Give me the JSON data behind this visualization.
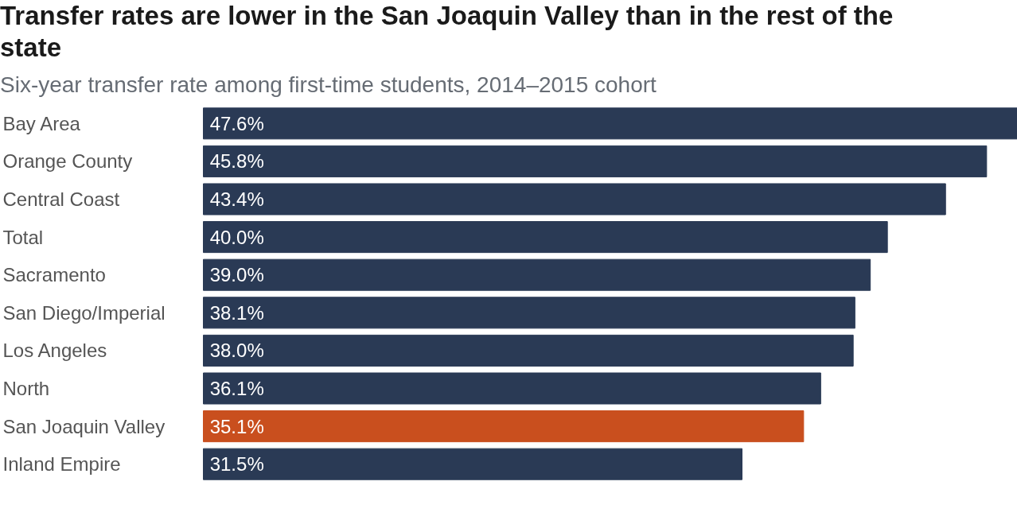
{
  "chart_data": {
    "type": "bar",
    "orientation": "horizontal",
    "title": "Transfer rates are lower in the San Joaquin Valley than in the rest of the state",
    "subtitle": "Six-year transfer rate among first-time students, 2014–2015 cohort",
    "categories": [
      "Bay Area",
      "Orange County",
      "Central Coast",
      "Total",
      "Sacramento",
      "San Diego/Imperial",
      "Los Angeles",
      "North",
      "San Joaquin Valley",
      "Inland Empire"
    ],
    "values": [
      47.6,
      45.8,
      43.4,
      40.0,
      39.0,
      38.1,
      38.0,
      36.1,
      35.1,
      31.5
    ],
    "value_labels": [
      "47.6%",
      "45.8%",
      "43.4%",
      "40.0%",
      "39.0%",
      "38.1%",
      "38.0%",
      "36.1%",
      "35.1%",
      "31.5%"
    ],
    "colors": [
      "#2a3a55",
      "#2a3a55",
      "#2a3a55",
      "#2a3a55",
      "#2a3a55",
      "#2a3a55",
      "#2a3a55",
      "#2a3a55",
      "#c94f1e",
      "#2a3a55"
    ],
    "grid": false
  }
}
